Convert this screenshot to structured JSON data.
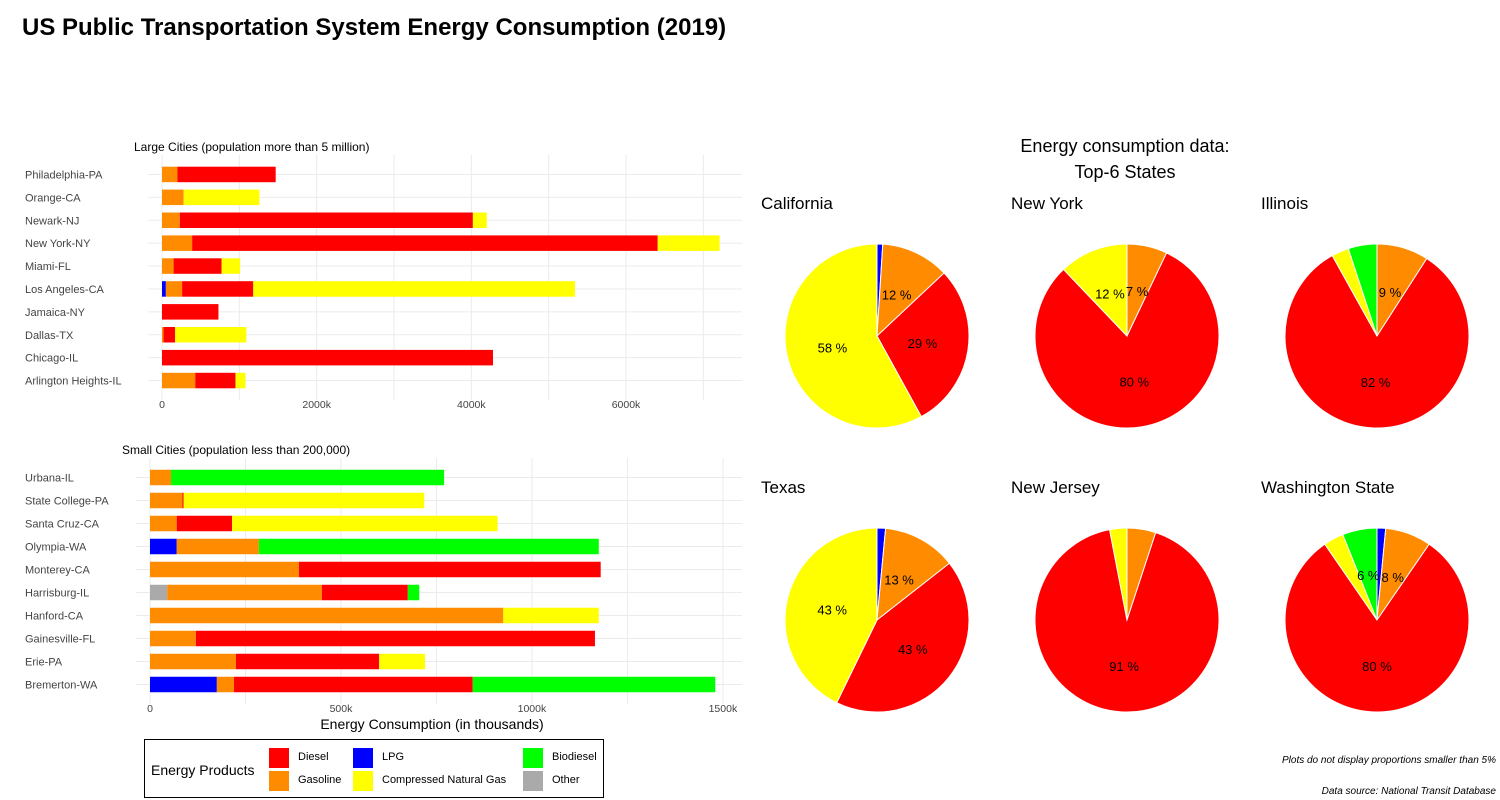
{
  "title": "US Public Transportation System Energy Consumption (2019)",
  "colors": {
    "Diesel": "#ff0000",
    "Gasoline": "#ff8c00",
    "LPG": "#0000ff",
    "Compressed Natural Gas": "#ffff00",
    "Biodiesel": "#00ff00",
    "Other": "#aaaaaa"
  },
  "legend": {
    "title": "Energy Products",
    "items": [
      "Diesel",
      "Gasoline",
      "LPG",
      "Compressed Natural Gas",
      "Biodiesel",
      "Other"
    ]
  },
  "notes": {
    "min_proportion": "Plots do not display proportions smaller than 5%",
    "source": "Data source: National Transit Database"
  },
  "chart_data": [
    {
      "type": "bar",
      "orientation": "horizontal",
      "stacked": true,
      "title": "Large Cities (population more than 5 million)",
      "xlabel": "",
      "ylabel": "",
      "xlim": [
        0,
        7500
      ],
      "xticks": [
        0,
        2000,
        4000,
        6000
      ],
      "xtick_labels": [
        "0",
        "2000k",
        "4000k",
        "6000k"
      ],
      "grid": true,
      "categories": [
        "Philadelphia-PA",
        "Orange-CA",
        "Newark-NJ",
        "New York-NY",
        "Miami-FL",
        "Los Angeles-CA",
        "Jamaica-NY",
        "Dallas-TX",
        "Chicago-IL",
        "Arlington Heights-IL"
      ],
      "series": [
        {
          "name": "LPG",
          "values": [
            0,
            0,
            0,
            0,
            0,
            50,
            0,
            0,
            0,
            0
          ]
        },
        {
          "name": "Gasoline",
          "values": [
            200,
            280,
            230,
            390,
            150,
            210,
            0,
            20,
            0,
            430
          ]
        },
        {
          "name": "Diesel",
          "values": [
            1270,
            0,
            3790,
            6020,
            620,
            920,
            730,
            150,
            4280,
            520
          ]
        },
        {
          "name": "Compressed Natural Gas",
          "values": [
            0,
            980,
            180,
            800,
            240,
            4160,
            0,
            920,
            0,
            130
          ]
        }
      ]
    },
    {
      "type": "bar",
      "orientation": "horizontal",
      "stacked": true,
      "title": "Small Cities (population less than 200,000)",
      "xlabel": "Energy Consumption (in thousands)",
      "ylabel": "",
      "xlim": [
        0,
        1550
      ],
      "xticks": [
        0,
        500,
        1000,
        1500
      ],
      "xtick_labels": [
        "0",
        "500k",
        "1000k",
        "1500k"
      ],
      "grid": true,
      "categories": [
        "Urbana-IL",
        "State College-PA",
        "Santa Cruz-CA",
        "Olympia-WA",
        "Monterey-CA",
        "Harrisburg-IL",
        "Hanford-CA",
        "Gainesville-FL",
        "Erie-PA",
        "Bremerton-WA"
      ],
      "series": [
        {
          "name": "Other",
          "values": [
            0,
            0,
            0,
            0,
            0,
            45,
            0,
            0,
            0,
            0
          ]
        },
        {
          "name": "LPG",
          "values": [
            0,
            0,
            0,
            70,
            0,
            0,
            0,
            0,
            0,
            175
          ]
        },
        {
          "name": "Gasoline",
          "values": [
            55,
            85,
            70,
            215,
            390,
            405,
            925,
            120,
            225,
            45
          ]
        },
        {
          "name": "Diesel",
          "values": [
            0,
            3,
            145,
            0,
            790,
            225,
            0,
            1045,
            375,
            625
          ]
        },
        {
          "name": "Compressed Natural Gas",
          "values": [
            0,
            630,
            695,
            0,
            0,
            0,
            250,
            0,
            120,
            0
          ]
        },
        {
          "name": "Biodiesel",
          "values": [
            715,
            0,
            0,
            890,
            0,
            30,
            0,
            0,
            0,
            635
          ]
        }
      ]
    },
    {
      "type": "pie",
      "title": "Energy consumption data:\nTop-6 States",
      "label_threshold_note": "Plots do not display proportions smaller than 5%",
      "pies": [
        {
          "state": "California",
          "slices": [
            {
              "name": "LPG",
              "value": 1
            },
            {
              "name": "Gasoline",
              "value": 12,
              "label": "12 %"
            },
            {
              "name": "Diesel",
              "value": 29,
              "label": "29 %"
            },
            {
              "name": "Compressed Natural Gas",
              "value": 58,
              "label": "58 %"
            }
          ]
        },
        {
          "state": "New York",
          "slices": [
            {
              "name": "Gasoline",
              "value": 7,
              "label": "7 %"
            },
            {
              "name": "Diesel",
              "value": 80,
              "label": "80 %"
            },
            {
              "name": "Compressed Natural Gas",
              "value": 12,
              "label": "12 %"
            }
          ]
        },
        {
          "state": "Illinois",
          "slices": [
            {
              "name": "Gasoline",
              "value": 9,
              "label": "9 %"
            },
            {
              "name": "Diesel",
              "value": 82,
              "label": "82 %"
            },
            {
              "name": "Compressed Natural Gas",
              "value": 3
            },
            {
              "name": "Biodiesel",
              "value": 5
            }
          ]
        },
        {
          "state": "Texas",
          "slices": [
            {
              "name": "LPG",
              "value": 1.5
            },
            {
              "name": "Gasoline",
              "value": 13,
              "label": "13 %"
            },
            {
              "name": "Diesel",
              "value": 43,
              "label": "43 %"
            },
            {
              "name": "Compressed Natural Gas",
              "value": 43,
              "label": "43 %"
            }
          ]
        },
        {
          "state": "New Jersey",
          "slices": [
            {
              "name": "Gasoline",
              "value": 5
            },
            {
              "name": "Diesel",
              "value": 91,
              "label": "91 %"
            },
            {
              "name": "Compressed Natural Gas",
              "value": 3
            }
          ]
        },
        {
          "state": "Washington State",
          "slices": [
            {
              "name": "LPG",
              "value": 1.5
            },
            {
              "name": "Gasoline",
              "value": 8,
              "label": "8 %"
            },
            {
              "name": "Diesel",
              "value": 80,
              "label": "80 %"
            },
            {
              "name": "Compressed Natural Gas",
              "value": 3.5
            },
            {
              "name": "Biodiesel",
              "value": 6,
              "label": "6 %"
            }
          ]
        }
      ]
    }
  ]
}
